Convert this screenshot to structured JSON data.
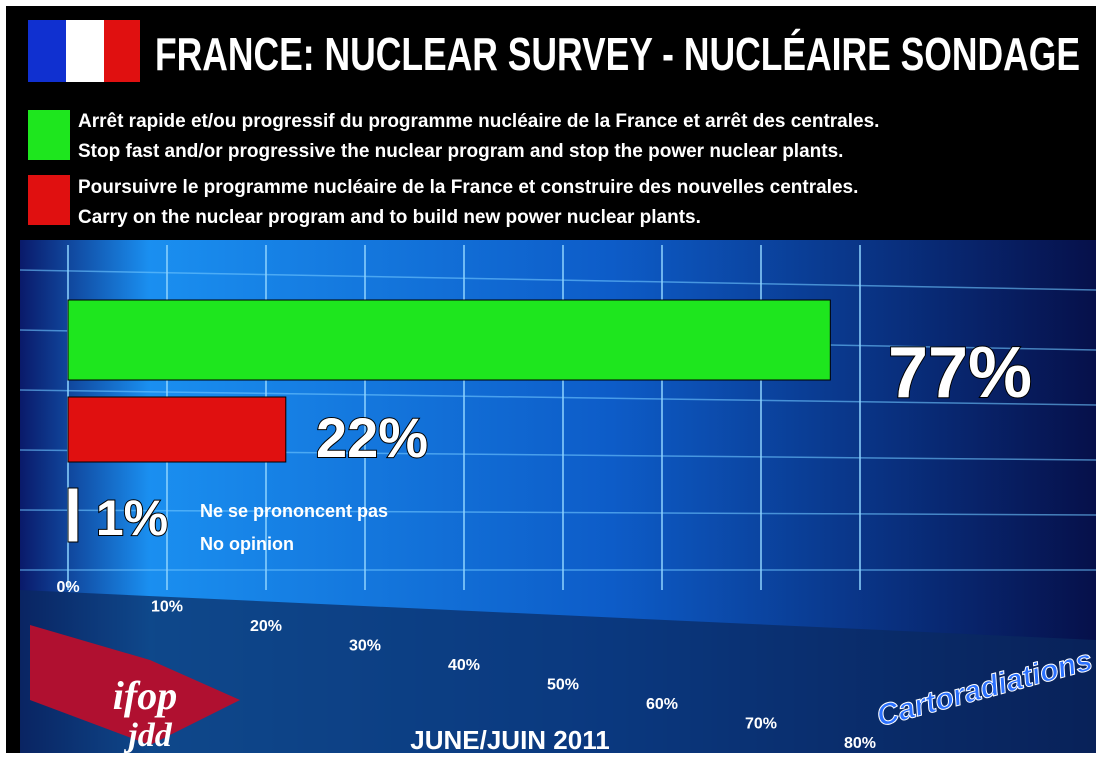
{
  "chart_data": {
    "type": "bar",
    "orientation": "horizontal",
    "title": "FRANCE: NUCLEAR SURVEY - NUCLÉAIRE SONDAGE",
    "series": [
      {
        "name": [
          "Arrêt rapide et/ou progressif du programme nucléaire de la France et arrêt des centrales.",
          "Stop fast and/or progressive the nuclear program and stop the power nuclear plants."
        ],
        "color": "#1ee61e",
        "values": [
          77
        ],
        "value_labels": [
          "77%"
        ]
      },
      {
        "name": [
          "Poursuivre le programme nucléaire de la France et construire des nouvelles centrales.",
          "Carry on the nuclear program and to build new power nuclear plants."
        ],
        "color": "#e01010",
        "values": [
          22
        ],
        "value_labels": [
          "22%"
        ]
      },
      {
        "name": [
          "Ne se prononcent pas",
          "No opinion"
        ],
        "color": "#ffffff",
        "values": [
          1
        ],
        "value_labels": [
          "1%"
        ]
      }
    ],
    "xlim": [
      0,
      80
    ],
    "xticks": [
      {
        "value": 0,
        "label": "0%"
      },
      {
        "value": 10,
        "label": "10%"
      },
      {
        "value": 20,
        "label": "20%"
      },
      {
        "value": 30,
        "label": "30%"
      },
      {
        "value": 40,
        "label": "40%"
      },
      {
        "value": 50,
        "label": "50%"
      },
      {
        "value": 60,
        "label": "60%"
      },
      {
        "value": 70,
        "label": "70%"
      },
      {
        "value": 80,
        "label": "80%"
      }
    ],
    "grid": true,
    "date": "JUNE/JUIN 2011",
    "logos": [
      "ifop",
      "jdd",
      "Cartoradiations"
    ]
  }
}
